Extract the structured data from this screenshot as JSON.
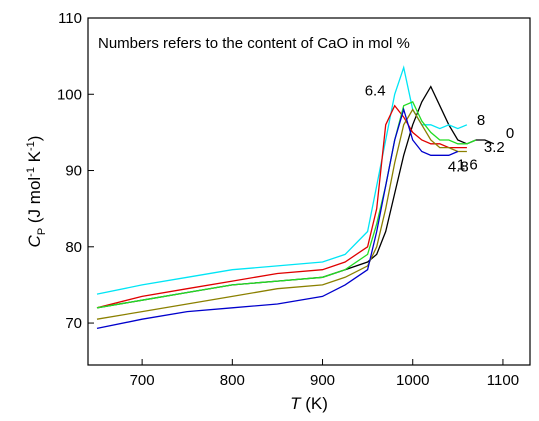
{
  "chart_data": {
    "type": "line",
    "annotation": "Numbers refers to the content of CaO in mol %",
    "xlabel": [
      {
        "text": "T",
        "style": "italic"
      },
      {
        "text": " (K)"
      }
    ],
    "ylabel": [
      {
        "text": "C",
        "style": "italic"
      },
      {
        "text": "P",
        "style": "sub"
      },
      {
        "text": " (J mol"
      },
      {
        "text": "-1",
        "style": "sup"
      },
      {
        "text": " K"
      },
      {
        "text": "-1",
        "style": "sup"
      },
      {
        "text": ")"
      }
    ],
    "x": [
      650,
      700,
      750,
      800,
      850,
      900,
      925,
      950,
      960,
      970,
      980,
      990,
      1000,
      1010,
      1020,
      1030,
      1040,
      1050,
      1060,
      1070,
      1080,
      1090
    ],
    "series": [
      {
        "name": "0",
        "color": "#000000",
        "values": [
          72,
          73,
          74,
          75,
          75.5,
          76,
          77,
          78,
          79,
          82,
          87,
          92,
          96,
          99,
          101,
          98.5,
          96,
          94,
          93.5,
          94,
          94,
          93.5
        ]
      },
      {
        "name": "8",
        "color": "#00e5f5",
        "values": [
          73.8,
          75,
          76,
          77,
          77.5,
          78,
          79,
          82,
          88,
          94,
          100,
          103.5,
          98,
          96,
          96,
          95.5,
          96,
          95.5,
          96,
          null,
          null,
          null
        ]
      },
      {
        "name": "6.4",
        "color": "#e00000",
        "values": [
          72,
          73.5,
          74.5,
          75.5,
          76.5,
          77,
          78,
          80,
          85,
          96,
          98.5,
          97,
          95,
          94,
          93.5,
          93.5,
          93,
          93,
          93,
          null,
          null,
          null
        ]
      },
      {
        "name": "3.2",
        "color": "#22dd22",
        "values": [
          72,
          73,
          74,
          75,
          75.5,
          76,
          77,
          79,
          83,
          88,
          94,
          98.5,
          99,
          96.5,
          95,
          94,
          94,
          93.5,
          93.5,
          94,
          null,
          null
        ]
      },
      {
        "name": "1.6",
        "color": "#8b8000",
        "values": [
          70.5,
          71.5,
          72.5,
          73.5,
          74.5,
          75,
          76,
          77.5,
          80,
          85,
          91,
          96,
          98,
          96,
          94,
          93,
          93,
          92.5,
          92.5,
          null,
          null,
          null
        ]
      },
      {
        "name": "4.8",
        "color": "#0000cc",
        "values": [
          69.3,
          70.5,
          71.5,
          72,
          72.5,
          73.5,
          75,
          77,
          82,
          88,
          94,
          98,
          94,
          92.5,
          92,
          92,
          92,
          92.5,
          null,
          null,
          null,
          null
        ]
      }
    ],
    "xlim": [
      640,
      1130
    ],
    "ylim": [
      64.5,
      110
    ],
    "xticks": [
      700,
      800,
      900,
      1000,
      1100
    ],
    "yticks": [
      70,
      80,
      90,
      100,
      110
    ]
  }
}
